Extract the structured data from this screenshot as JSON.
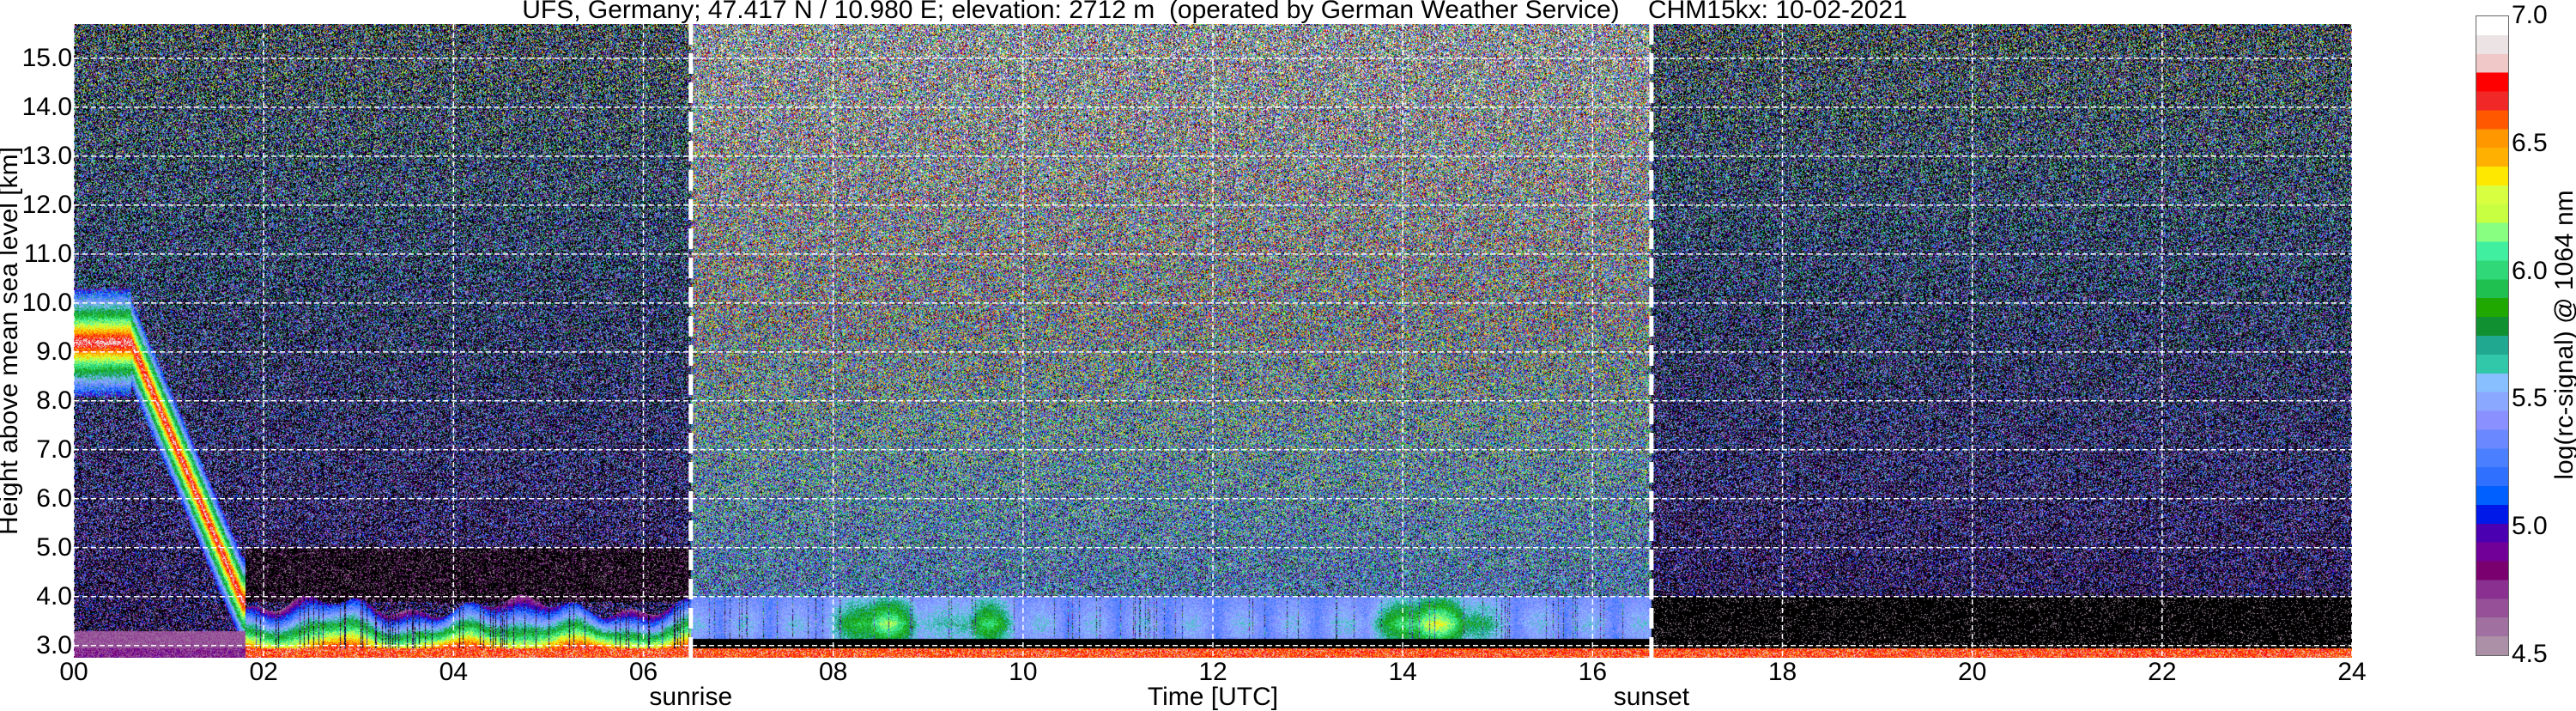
{
  "chart_data": {
    "type": "heatmap",
    "title": "UFS, Germany; 47.417 N / 10.980 E; elevation: 2712 m  (operated by German Weather Service)    CHM15kx: 10-02-2021",
    "xlabel": "Time [UTC]",
    "ylabel": "Height above mean sea level [km]",
    "xlim": [
      0,
      24
    ],
    "ylim": [
      2.75,
      15.7
    ],
    "x_ticks": [
      "00",
      "02",
      "04",
      "06",
      "08",
      "10",
      "12",
      "14",
      "16",
      "18",
      "20",
      "22",
      "24"
    ],
    "y_ticks": [
      "3.0",
      "4.0",
      "5.0",
      "6.0",
      "7.0",
      "8.0",
      "9.0",
      "10.0",
      "11.0",
      "12.0",
      "13.0",
      "14.0",
      "15.0"
    ],
    "grid": true,
    "annotations": [
      {
        "label": "sunrise",
        "x": 6.5
      },
      {
        "label": "sunset",
        "x": 16.62
      }
    ],
    "colorbar": {
      "label": "log(rc-signal) @ 1064 nm",
      "range": [
        4.5,
        7.0
      ],
      "ticks": [
        "4.5",
        "5.0",
        "5.5",
        "6.0",
        "6.5",
        "7.0"
      ],
      "colors": [
        "#ab90a8",
        "#a070a0",
        "#965098",
        "#8a3090",
        "#7a0070",
        "#700098",
        "#4a00b0",
        "#0018e8",
        "#0060ff",
        "#3070ff",
        "#4a80ff",
        "#6a88ff",
        "#8a90ff",
        "#8aa8ff",
        "#88c0ff",
        "#30c8a8",
        "#20a890",
        "#109030",
        "#20a800",
        "#20c050",
        "#30d878",
        "#40f0a0",
        "#88ff80",
        "#c8ff40",
        "#d8ff40",
        "#ffe800",
        "#ffb000",
        "#ff9800",
        "#ff5800",
        "#f02828",
        "#ff0000",
        "#f0c8c8",
        "#ece4e4",
        "#ffffff"
      ]
    },
    "features": [
      {
        "name": "cloud layer",
        "time": [
          0,
          1.8
        ],
        "height_km": [
          10.3,
          3.9
        ],
        "log_signal": 6.6
      },
      {
        "name": "night boundary layer",
        "time": [
          1.8,
          6.5
        ],
        "height_km": [
          2.95,
          3.9
        ],
        "log_signal": 6.3
      },
      {
        "name": "daytime boundary layer",
        "time": [
          6.5,
          16.6
        ],
        "height_km": [
          3.1,
          4.0
        ],
        "log_signal": 5.5
      }
    ]
  }
}
